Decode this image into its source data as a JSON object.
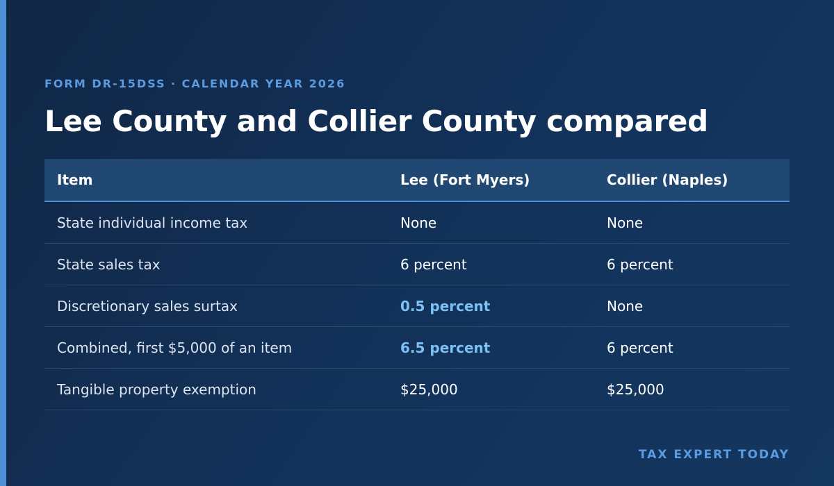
{
  "header": {
    "eyebrow": "FORM DR-15DSS · CALENDAR YEAR 2026",
    "title": "Lee County and Collier County compared"
  },
  "table": {
    "columns": [
      "Item",
      "Lee (Fort Myers)",
      "Collier (Naples)"
    ],
    "rows": [
      [
        "State individual income tax",
        "None",
        "None"
      ],
      [
        "State sales tax",
        "6 percent",
        "6 percent"
      ],
      [
        "Discretionary sales surtax",
        "0.5 percent",
        "None"
      ],
      [
        "Combined, first $5,000 of an item",
        "6.5 percent",
        "6 percent"
      ],
      [
        "Tangible property exemption",
        "$25,000",
        "$25,000"
      ]
    ]
  },
  "footer": {
    "brand": "TAX EXPERT TODAY"
  },
  "colors": {
    "background": "#12325a",
    "accent": "#4e8fd8",
    "highlight": "#7cc0f5",
    "header_row": "#214872"
  }
}
